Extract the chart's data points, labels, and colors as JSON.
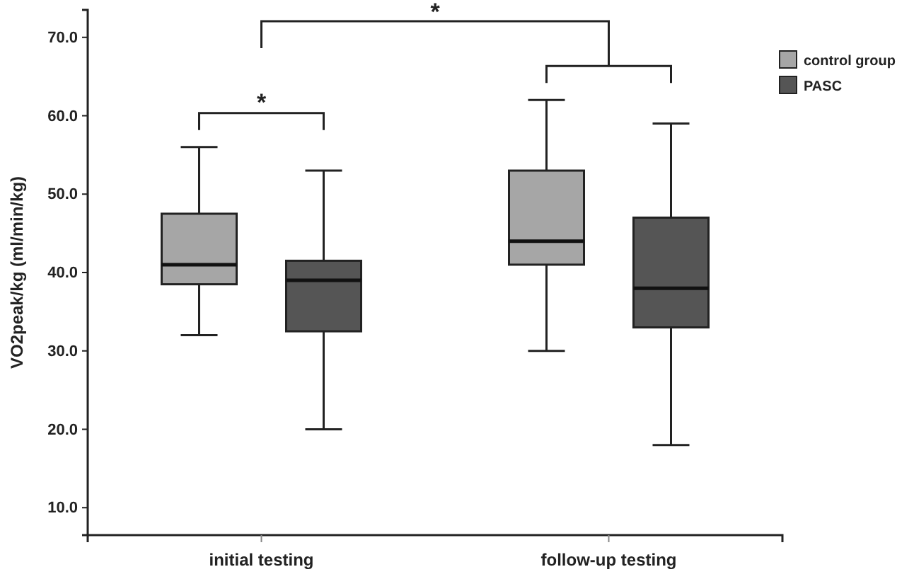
{
  "chart_data": {
    "type": "box",
    "ylabel": "VO2peak/kg (ml/min/kg)",
    "categories": [
      "initial testing",
      "follow-up testing"
    ],
    "ylim": [
      6.5,
      73.5
    ],
    "yticks": [
      {
        "value": 10,
        "label": "10.0"
      },
      {
        "value": 20,
        "label": "20.0"
      },
      {
        "value": 30,
        "label": "30.0"
      },
      {
        "value": 40,
        "label": "40.0"
      },
      {
        "value": 50,
        "label": "50.0"
      },
      {
        "value": 60,
        "label": "60.0"
      },
      {
        "value": 70,
        "label": "70.0"
      }
    ],
    "series": [
      {
        "name": "control group",
        "color": "#a6a6a6",
        "boxes": [
          {
            "low": 32,
            "q1": 38.5,
            "median": 41,
            "q3": 47.5,
            "high": 56
          },
          {
            "low": 30,
            "q1": 41,
            "median": 44,
            "q3": 53,
            "high": 62
          }
        ]
      },
      {
        "name": "PASC",
        "color": "#555555",
        "boxes": [
          {
            "low": 20,
            "q1": 32.5,
            "median": 39,
            "q3": 41.5,
            "high": 53
          },
          {
            "low": 18,
            "q1": 33,
            "median": 38,
            "q3": 47,
            "high": 59
          }
        ]
      }
    ],
    "annotations": [
      "*",
      "*"
    ],
    "legend": "top right",
    "grid": false
  }
}
